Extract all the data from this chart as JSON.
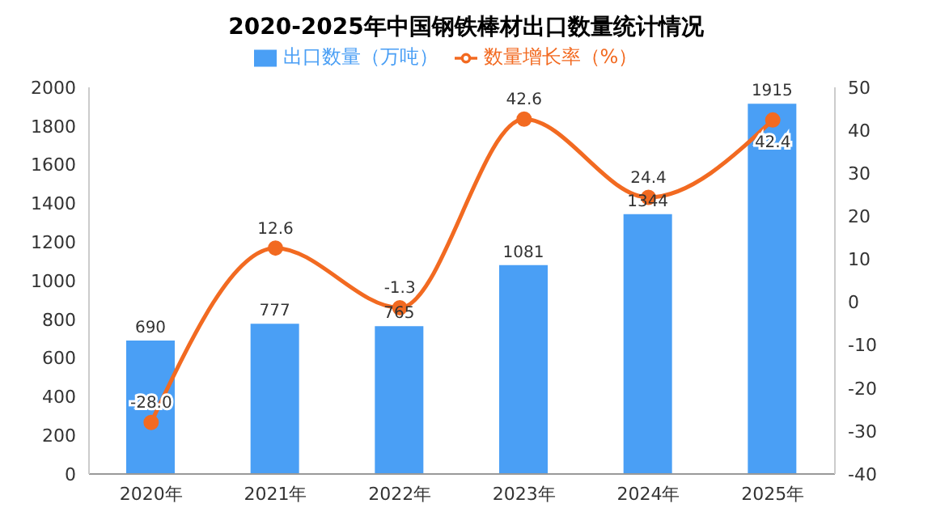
{
  "chart_data": {
    "type": "bar",
    "title": "2020-2025年中国钢铁棒材出口数量统计情况",
    "categories": [
      "2020年",
      "2021年",
      "2022年",
      "2023年",
      "2024年",
      "2025年"
    ],
    "series": [
      {
        "name": "出口数量（万吨）",
        "color": "#4a9ff5",
        "values": [
          690,
          777,
          765,
          1081,
          1344,
          1915
        ]
      },
      {
        "name": "数量增长率（%）",
        "type": "line",
        "axis": "y2",
        "color": "#f26a21",
        "values": [
          -28.0,
          12.6,
          -1.3,
          42.6,
          24.4,
          42.4
        ],
        "value_labels": [
          "-28.0",
          "12.6",
          "-1.3",
          "42.6",
          "24.4",
          "42.4"
        ],
        "marker": "circle"
      }
    ],
    "data_labels": true,
    "ylim": [
      0,
      2000
    ],
    "yticks": [
      0,
      200,
      400,
      600,
      800,
      1000,
      1200,
      1400,
      1600,
      1800,
      2000
    ],
    "y2lim": [
      -40,
      50
    ],
    "y2ticks": [
      -40,
      -30,
      -20,
      -10,
      0,
      10,
      20,
      30,
      40,
      50
    ],
    "legend": "top"
  }
}
